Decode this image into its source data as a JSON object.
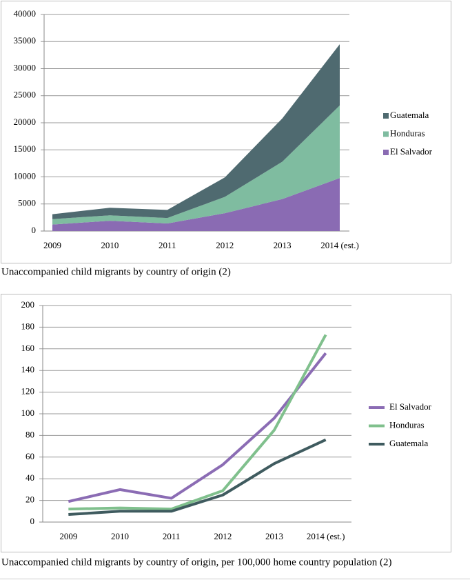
{
  "chart_data": [
    {
      "type": "stacked-area",
      "categories": [
        "2009",
        "2010",
        "2011",
        "2012",
        "2013",
        "2014 (est.)"
      ],
      "series": [
        {
          "name": "El Salvador",
          "color": "#8a6bb3",
          "values": [
            1200,
            1900,
            1400,
            3300,
            5900,
            9800
          ]
        },
        {
          "name": "Honduras",
          "color": "#7fbca0",
          "values": [
            1000,
            1000,
            1000,
            3000,
            6900,
            13400
          ]
        },
        {
          "name": "Guatemala",
          "color": "#4f6a70",
          "values": [
            900,
            1400,
            1500,
            3600,
            8000,
            11300
          ]
        }
      ],
      "ylim": [
        0,
        40000
      ],
      "yticks": [
        0,
        5000,
        10000,
        15000,
        20000,
        25000,
        30000,
        35000,
        40000
      ],
      "legend": "right",
      "legend_order": "reversed",
      "caption": "Unaccompanied child migrants by country of origin (2)"
    },
    {
      "type": "line",
      "categories": [
        "2009",
        "2010",
        "2011",
        "2012",
        "2013",
        "2014 (est.)"
      ],
      "series": [
        {
          "name": "El Salvador",
          "color": "#8b6cb4",
          "values": [
            19,
            30,
            22,
            53,
            96,
            156
          ]
        },
        {
          "name": "Honduras",
          "color": "#80c08d",
          "values": [
            12,
            13,
            12,
            29,
            85,
            173
          ]
        },
        {
          "name": "Guatemala",
          "color": "#3f5b5f",
          "values": [
            7,
            10,
            10,
            25,
            54,
            76
          ]
        }
      ],
      "ylim": [
        0,
        200
      ],
      "yticks": [
        0,
        20,
        40,
        60,
        80,
        100,
        120,
        140,
        160,
        180,
        200
      ],
      "legend": "right",
      "legend_order": "normal",
      "caption": "Unaccompanied child migrants by country of origin, per 100,000 home country population (2)"
    }
  ]
}
